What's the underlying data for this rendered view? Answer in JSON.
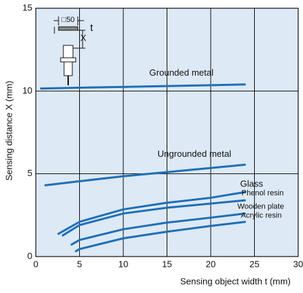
{
  "chart_data": {
    "type": "line",
    "xlabel": "Sensing object width t (mm)",
    "ylabel": "Sensing distance X (mm)",
    "xlim": [
      0,
      30
    ],
    "xticks": [
      0,
      5,
      10,
      15,
      20,
      25,
      30
    ],
    "ylim": [
      0,
      15
    ],
    "yticks": [
      0,
      5,
      10,
      15
    ],
    "grid": true,
    "series": [
      {
        "name": "Grounded metal",
        "color": "#1f6fb5",
        "x": [
          0.5,
          5,
          10,
          15,
          20,
          24
        ],
        "values": [
          10.15,
          10.2,
          10.25,
          10.3,
          10.35,
          10.4
        ]
      },
      {
        "name": "Ungrounded metal",
        "color": "#1f6fb5",
        "x": [
          1,
          5,
          10,
          15,
          20,
          24
        ],
        "values": [
          4.3,
          4.55,
          4.85,
          5.1,
          5.35,
          5.55
        ]
      },
      {
        "name": "Glass",
        "color": "#1f6fb5",
        "x": [
          2.5,
          5,
          10,
          15,
          20,
          24
        ],
        "values": [
          1.35,
          2.1,
          2.85,
          3.25,
          3.55,
          3.9
        ]
      },
      {
        "name": "Phenol resin",
        "color": "#1f6fb5",
        "x": [
          3,
          5,
          10,
          15,
          20,
          24
        ],
        "values": [
          1.25,
          1.9,
          2.6,
          2.95,
          3.2,
          3.4
        ]
      },
      {
        "name": "Wooden plate",
        "color": "#1f6fb5",
        "x": [
          4,
          5,
          10,
          15,
          20,
          24
        ],
        "values": [
          0.7,
          1.0,
          1.65,
          2.05,
          2.35,
          2.6
        ]
      },
      {
        "name": "Acrylic resin",
        "color": "#1f6fb5",
        "x": [
          4.5,
          5,
          10,
          15,
          20,
          24
        ],
        "values": [
          0.3,
          0.45,
          1.1,
          1.5,
          1.85,
          2.1
        ]
      }
    ]
  },
  "diagram_labels": {
    "size": "□50",
    "t": "t",
    "x": "X"
  }
}
